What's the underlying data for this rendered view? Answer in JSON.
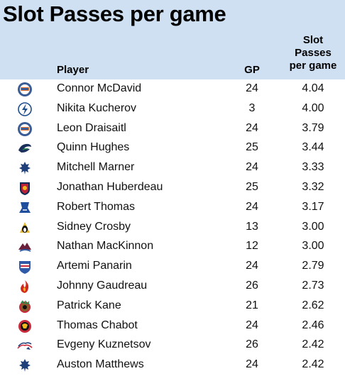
{
  "title": "Slot Passes per game",
  "columns": {
    "player": "Player",
    "gp": "GP",
    "metric_lines": [
      "Slot",
      "Passes",
      "per game"
    ]
  },
  "chart_data": {
    "type": "table",
    "title": "Slot Passes per game",
    "columns": [
      "Player",
      "GP",
      "Slot Passes per game"
    ],
    "rows": [
      {
        "team_logo": "oilers-logo",
        "player": "Connor McDavid",
        "gp": "24",
        "value": "4.04"
      },
      {
        "team_logo": "lightning-logo",
        "player": "Nikita Kucherov",
        "gp": "3",
        "value": "4.00"
      },
      {
        "team_logo": "oilers-logo",
        "player": "Leon Draisaitl",
        "gp": "24",
        "value": "3.79"
      },
      {
        "team_logo": "canucks-logo",
        "player": "Quinn Hughes",
        "gp": "25",
        "value": "3.44"
      },
      {
        "team_logo": "maple-leafs-logo",
        "player": "Mitchell Marner",
        "gp": "24",
        "value": "3.33"
      },
      {
        "team_logo": "panthers-logo",
        "player": "Jonathan Huberdeau",
        "gp": "25",
        "value": "3.32"
      },
      {
        "team_logo": "blues-logo",
        "player": "Robert Thomas",
        "gp": "24",
        "value": "3.17"
      },
      {
        "team_logo": "penguins-logo",
        "player": "Sidney Crosby",
        "gp": "13",
        "value": "3.00"
      },
      {
        "team_logo": "avalanche-logo",
        "player": "Nathan MacKinnon",
        "gp": "12",
        "value": "3.00"
      },
      {
        "team_logo": "rangers-logo",
        "player": "Artemi Panarin",
        "gp": "24",
        "value": "2.79"
      },
      {
        "team_logo": "flames-logo",
        "player": "Johnny Gaudreau",
        "gp": "26",
        "value": "2.73"
      },
      {
        "team_logo": "blackhawks-logo",
        "player": "Patrick Kane",
        "gp": "21",
        "value": "2.62"
      },
      {
        "team_logo": "senators-logo",
        "player": "Thomas Chabot",
        "gp": "24",
        "value": "2.46"
      },
      {
        "team_logo": "capitals-logo",
        "player": "Evgeny Kuznetsov",
        "gp": "26",
        "value": "2.42"
      },
      {
        "team_logo": "maple-leafs-logo",
        "player": "Auston Matthews",
        "gp": "24",
        "value": "2.42"
      }
    ]
  },
  "colors": {
    "header_bg": "#cfe0f3",
    "oilers": "#3a5d96",
    "oilers_accent": "#e8702a",
    "lightning": "#1f4e8c",
    "canucks": "#1a2f5c",
    "canucks_accent": "#2e8b57",
    "leafs": "#1f3f7a",
    "panthers": "#b8233a",
    "panthers_accent": "#0d2a52",
    "blues": "#1f4e9c",
    "penguins": "#111111",
    "penguins_accent": "#e6b82e",
    "avalanche": "#6b1f3a",
    "avalanche_accent": "#2f5aa0",
    "rangers": "#2f5aa8",
    "rangers_accent": "#c8283a",
    "flames": "#d02a1f",
    "flames_accent": "#f2b51c",
    "blackhawks": "#c8283a",
    "senators": "#c8283a",
    "capitals": "#1f3f7a",
    "capitals_accent": "#c8283a"
  }
}
